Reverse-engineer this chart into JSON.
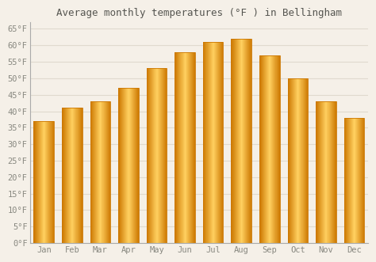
{
  "title": "Average monthly temperatures (°F ) in Bellingham",
  "months": [
    "Jan",
    "Feb",
    "Mar",
    "Apr",
    "May",
    "Jun",
    "Jul",
    "Aug",
    "Sep",
    "Oct",
    "Nov",
    "Dec"
  ],
  "values": [
    37,
    41,
    43,
    47,
    53,
    58,
    61,
    62,
    57,
    50,
    43,
    38
  ],
  "bar_color_main": "#FFAA00",
  "bar_color_edge": "#CC7700",
  "bar_color_light": "#FFD060",
  "background_color": "#F5F0E8",
  "plot_bg_color": "#F5F0E8",
  "grid_color": "#E0DACE",
  "ytick_labels": [
    "0°F",
    "5°F",
    "10°F",
    "15°F",
    "20°F",
    "25°F",
    "30°F",
    "35°F",
    "40°F",
    "45°F",
    "50°F",
    "55°F",
    "60°F",
    "65°F"
  ],
  "ytick_values": [
    0,
    5,
    10,
    15,
    20,
    25,
    30,
    35,
    40,
    45,
    50,
    55,
    60,
    65
  ],
  "ylim": [
    0,
    67
  ],
  "title_fontsize": 9,
  "axis_label_fontsize": 7.5,
  "tick_color": "#888880",
  "title_color": "#555550",
  "font_family": "monospace"
}
